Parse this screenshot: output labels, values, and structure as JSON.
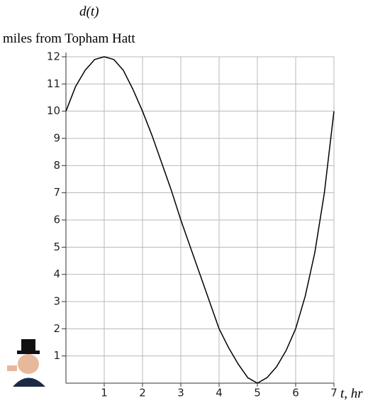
{
  "chart_data": {
    "type": "line",
    "title": "d(t)",
    "subtitle": "miles from Topham Hatt",
    "x_label": "t, hr",
    "x": [
      0,
      0.25,
      0.5,
      0.75,
      1,
      1.25,
      1.5,
      1.75,
      2,
      2.25,
      2.5,
      2.75,
      3,
      3.25,
      3.5,
      3.75,
      4,
      4.25,
      4.5,
      4.75,
      5,
      5.25,
      5.5,
      5.75,
      6,
      6.25,
      6.5,
      6.75,
      7
    ],
    "series": [
      {
        "name": "d(t)",
        "color": "#000000",
        "values": [
          10,
          10.9,
          11.5,
          11.9,
          12,
          11.9,
          11.5,
          10.8,
          10,
          9.1,
          8.1,
          7.1,
          6,
          5,
          4,
          3,
          2,
          1.3,
          0.7,
          0.2,
          0,
          0.2,
          0.6,
          1.2,
          2,
          3.2,
          4.8,
          7,
          10
        ]
      }
    ],
    "xlim": [
      0,
      7
    ],
    "xticks": [
      1,
      2,
      3,
      4,
      5,
      6,
      7
    ],
    "ylim": [
      0,
      12
    ],
    "yticks": [
      1,
      2,
      3,
      4,
      5,
      6,
      7,
      8,
      9,
      10,
      11,
      12
    ],
    "grid": true
  }
}
